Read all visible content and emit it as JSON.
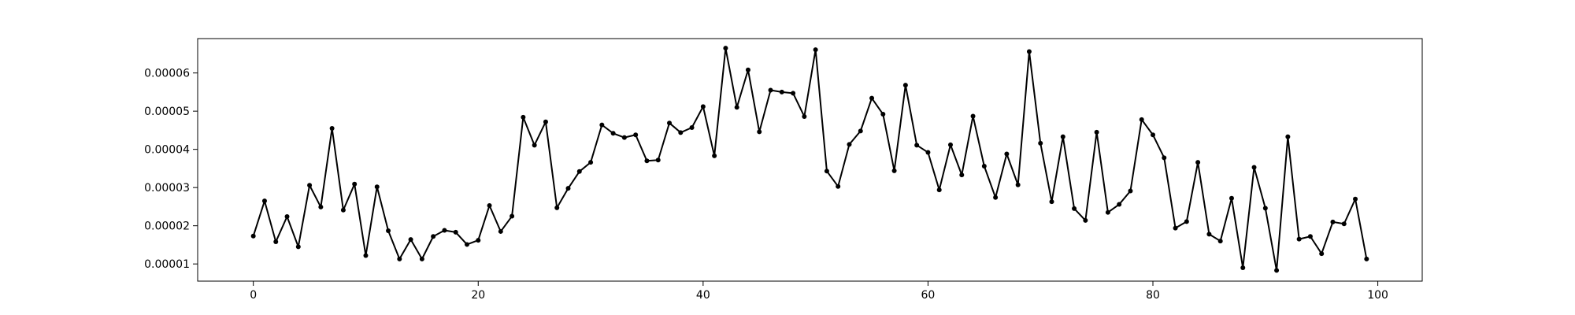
{
  "chart_data": {
    "type": "line",
    "title": "",
    "xlabel": "",
    "ylabel": "",
    "grid": false,
    "xlim": [
      -4.95,
      103.95
    ],
    "ylim": [
      5.5e-06,
      6.9e-05
    ],
    "xticks": [
      0,
      20,
      40,
      60,
      80,
      100
    ],
    "xtick_labels": [
      "0",
      "20",
      "40",
      "60",
      "80",
      "100"
    ],
    "yticks": [
      1e-05,
      2e-05,
      3e-05,
      4e-05,
      5e-05,
      6e-05
    ],
    "ytick_labels": [
      "0.00001",
      "0.00002",
      "0.00003",
      "0.00004",
      "0.00005",
      "0.00006"
    ],
    "line_color": "#000000",
    "series": [
      {
        "x": [
          0,
          1,
          2,
          3,
          4,
          5,
          6,
          7,
          8,
          9,
          10,
          11,
          12,
          13,
          14,
          15,
          16,
          17,
          18,
          19,
          20,
          21,
          22,
          23,
          24,
          25,
          26,
          27,
          28,
          29,
          30,
          31,
          32,
          33,
          34,
          35,
          36,
          37,
          38,
          39,
          40,
          41,
          42,
          43,
          44,
          45,
          46,
          47,
          48,
          49,
          50,
          51,
          52,
          53,
          54,
          55,
          56,
          57,
          58,
          59,
          60,
          61,
          62,
          63,
          64,
          65,
          66,
          67,
          68,
          69,
          70,
          71,
          72,
          73,
          74,
          75,
          76,
          77,
          78,
          79,
          80,
          81,
          82,
          83,
          84,
          85,
          86,
          87,
          88,
          89,
          90,
          91,
          92,
          93,
          94,
          95,
          96,
          97,
          98,
          99
        ],
        "y": [
          1.73e-05,
          2.65e-05,
          1.58e-05,
          2.24e-05,
          1.45e-05,
          3.06e-05,
          2.49e-05,
          4.55e-05,
          2.41e-05,
          3.09e-05,
          1.22e-05,
          3.02e-05,
          1.87e-05,
          1.13e-05,
          1.64e-05,
          1.13e-05,
          1.72e-05,
          1.88e-05,
          1.83e-05,
          1.51e-05,
          1.62e-05,
          2.53e-05,
          1.85e-05,
          2.25e-05,
          4.84e-05,
          4.11e-05,
          4.72e-05,
          2.47e-05,
          2.98e-05,
          3.42e-05,
          3.66e-05,
          4.64e-05,
          4.42e-05,
          4.31e-05,
          4.38e-05,
          3.7e-05,
          3.72e-05,
          4.69e-05,
          4.44e-05,
          4.57e-05,
          5.12e-05,
          3.83e-05,
          6.65e-05,
          5.1e-05,
          6.08e-05,
          4.46e-05,
          5.55e-05,
          5.5e-05,
          5.47e-05,
          4.86e-05,
          6.61e-05,
          3.43e-05,
          3.03e-05,
          4.13e-05,
          4.48e-05,
          5.34e-05,
          4.92e-05,
          3.44e-05,
          5.68e-05,
          4.11e-05,
          3.92e-05,
          2.94e-05,
          4.12e-05,
          3.33e-05,
          4.87e-05,
          3.56e-05,
          2.74e-05,
          3.88e-05,
          3.07e-05,
          6.56e-05,
          4.16e-05,
          2.63e-05,
          4.33e-05,
          2.45e-05,
          2.14e-05,
          4.45e-05,
          2.35e-05,
          2.56e-05,
          2.91e-05,
          4.78e-05,
          4.38e-05,
          3.78e-05,
          1.94e-05,
          2.11e-05,
          3.66e-05,
          1.78e-05,
          1.6e-05,
          2.72e-05,
          9e-06,
          3.53e-05,
          2.46e-05,
          8.3e-06,
          4.33e-05,
          1.65e-05,
          1.72e-05,
          1.27e-05,
          2.1e-05,
          2.05e-05,
          2.7e-05,
          1.13e-05
        ]
      }
    ]
  }
}
